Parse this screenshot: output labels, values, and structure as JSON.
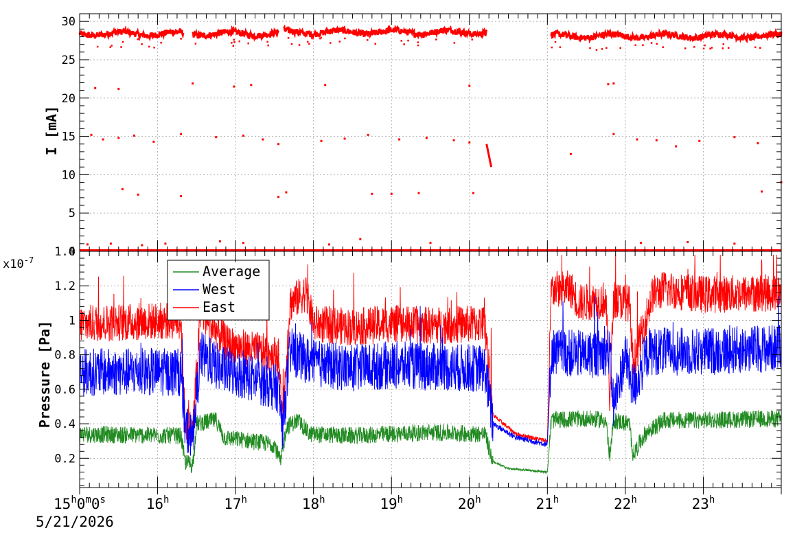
{
  "chart_data": [
    {
      "type": "scatter",
      "panel": "top",
      "ylabel": "I [mA]",
      "ylim": [
        0,
        31
      ],
      "yticks": [
        0,
        5,
        10,
        15,
        20,
        25,
        30
      ],
      "ytick_labels": [
        "0",
        "5",
        "10",
        "15",
        "20",
        "25",
        "30"
      ],
      "grid": true,
      "series": [
        {
          "color": "#ff0000",
          "description_of_shape": "beam current",
          "segments": [
            {
              "t_start": 15.0,
              "t_end": 16.33,
              "level": 28.4
            },
            {
              "t_start": 16.45,
              "t_end": 17.55,
              "level": 28.4
            },
            {
              "t_start": 17.62,
              "t_end": 20.22,
              "level": 28.6
            },
            {
              "t_start": 21.05,
              "t_end": 24.0,
              "level": 28.1
            }
          ],
          "outliers": [
            [
              15.2,
              21.3
            ],
            [
              15.5,
              21.2
            ],
            [
              16.45,
              21.9
            ],
            [
              16.98,
              21.5
            ],
            [
              17.2,
              21.7
            ],
            [
              18.15,
              21.7
            ],
            [
              20.0,
              21.6
            ],
            [
              21.78,
              21.8
            ],
            [
              21.85,
              21.9
            ],
            [
              15.15,
              15.2
            ],
            [
              15.3,
              14.6
            ],
            [
              15.5,
              14.8
            ],
            [
              15.7,
              15.1
            ],
            [
              15.95,
              14.3
            ],
            [
              16.3,
              15.3
            ],
            [
              16.75,
              14.9
            ],
            [
              17.1,
              15.1
            ],
            [
              17.35,
              14.6
            ],
            [
              17.55,
              14.0
            ],
            [
              18.1,
              14.4
            ],
            [
              18.4,
              14.7
            ],
            [
              18.7,
              15.2
            ],
            [
              19.1,
              14.6
            ],
            [
              19.45,
              14.8
            ],
            [
              19.8,
              14.5
            ],
            [
              20.0,
              14.2
            ],
            [
              21.85,
              15.3
            ],
            [
              22.15,
              14.6
            ],
            [
              22.4,
              14.5
            ],
            [
              22.65,
              13.7
            ],
            [
              22.95,
              14.4
            ],
            [
              23.4,
              14.9
            ],
            [
              23.7,
              14.1
            ],
            [
              21.3,
              12.7
            ],
            [
              15.55,
              8.1
            ],
            [
              15.75,
              7.4
            ],
            [
              16.3,
              7.2
            ],
            [
              17.55,
              7.1
            ],
            [
              17.65,
              7.7
            ],
            [
              18.75,
              7.5
            ],
            [
              19.0,
              7.5
            ],
            [
              19.35,
              7.6
            ],
            [
              20.05,
              7.6
            ],
            [
              23.75,
              7.8
            ],
            [
              24.0,
              9.0
            ],
            [
              15.1,
              0.9
            ],
            [
              15.4,
              1.0
            ],
            [
              15.8,
              0.8
            ],
            [
              16.1,
              1.0
            ],
            [
              16.8,
              1.3
            ],
            [
              17.1,
              1.1
            ],
            [
              18.2,
              0.9
            ],
            [
              18.6,
              1.6
            ],
            [
              19.5,
              1.1
            ],
            [
              22.2,
              1.1
            ],
            [
              22.8,
              1.2
            ],
            [
              23.4,
              1.0
            ]
          ],
          "ramp": {
            "t_start": 20.22,
            "t_end": 20.28,
            "from": 14.0,
            "to": 11.0
          }
        }
      ]
    },
    {
      "type": "line",
      "panel": "bottom",
      "ylabel": "Pressure [Pa]",
      "y_exponent_label": "x10",
      "y_exponent_value": "-7",
      "ylim": [
        0.03,
        1.4
      ],
      "yticks": [
        0.2,
        0.4,
        0.6,
        0.8,
        1.0,
        1.2,
        1.4
      ],
      "ytick_labels": [
        "0.2",
        "0.4",
        "0.6",
        "0.8",
        "1",
        "1.2",
        "1.4"
      ],
      "grid": true,
      "legend_position": "top-left",
      "series": [
        {
          "name": "Average",
          "color": "#228b22",
          "points": [
            [
              15.0,
              0.34
            ],
            [
              16.3,
              0.33
            ],
            [
              16.35,
              0.18
            ],
            [
              16.45,
              0.16
            ],
            [
              16.5,
              0.4
            ],
            [
              16.75,
              0.42
            ],
            [
              16.85,
              0.32
            ],
            [
              17.2,
              0.3
            ],
            [
              17.5,
              0.28
            ],
            [
              17.58,
              0.17
            ],
            [
              17.65,
              0.38
            ],
            [
              17.8,
              0.42
            ],
            [
              17.95,
              0.34
            ],
            [
              18.5,
              0.33
            ],
            [
              19.5,
              0.35
            ],
            [
              20.2,
              0.34
            ],
            [
              20.3,
              0.18
            ],
            [
              20.5,
              0.14
            ],
            [
              21.0,
              0.12
            ],
            [
              21.05,
              0.42
            ],
            [
              21.5,
              0.43
            ],
            [
              21.75,
              0.42
            ],
            [
              21.8,
              0.2
            ],
            [
              21.85,
              0.42
            ],
            [
              22.05,
              0.4
            ],
            [
              22.1,
              0.22
            ],
            [
              22.25,
              0.34
            ],
            [
              22.5,
              0.42
            ],
            [
              23.0,
              0.42
            ],
            [
              24.0,
              0.43
            ]
          ]
        },
        {
          "name": "West",
          "color": "#0000ff",
          "points": [
            [
              15.0,
              0.7
            ],
            [
              16.3,
              0.7
            ],
            [
              16.35,
              0.38
            ],
            [
              16.45,
              0.32
            ],
            [
              16.55,
              0.8
            ],
            [
              16.8,
              0.72
            ],
            [
              17.3,
              0.65
            ],
            [
              17.55,
              0.6
            ],
            [
              17.6,
              0.38
            ],
            [
              17.7,
              0.82
            ],
            [
              18.0,
              0.75
            ],
            [
              18.5,
              0.72
            ],
            [
              19.0,
              0.74
            ],
            [
              19.5,
              0.73
            ],
            [
              20.2,
              0.72
            ],
            [
              20.3,
              0.4
            ],
            [
              20.6,
              0.32
            ],
            [
              21.0,
              0.28
            ],
            [
              21.05,
              0.82
            ],
            [
              21.5,
              0.8
            ],
            [
              21.8,
              0.82
            ],
            [
              21.85,
              0.5
            ],
            [
              22.0,
              0.8
            ],
            [
              22.1,
              0.6
            ],
            [
              22.3,
              0.82
            ],
            [
              23.0,
              0.82
            ],
            [
              24.0,
              0.84
            ]
          ]
        },
        {
          "name": "East",
          "color": "#ff0000",
          "points": [
            [
              15.0,
              0.98
            ],
            [
              16.3,
              1.0
            ],
            [
              16.35,
              0.42
            ],
            [
              16.45,
              0.35
            ],
            [
              16.55,
              1.05
            ],
            [
              16.9,
              0.86
            ],
            [
              17.3,
              0.82
            ],
            [
              17.55,
              0.8
            ],
            [
              17.6,
              0.42
            ],
            [
              17.7,
              1.1
            ],
            [
              17.9,
              1.16
            ],
            [
              18.0,
              0.98
            ],
            [
              18.5,
              0.96
            ],
            [
              19.0,
              0.98
            ],
            [
              19.5,
              0.97
            ],
            [
              20.2,
              0.98
            ],
            [
              20.3,
              0.45
            ],
            [
              20.6,
              0.34
            ],
            [
              21.0,
              0.3
            ],
            [
              21.05,
              1.18
            ],
            [
              21.3,
              1.18
            ],
            [
              21.4,
              1.1
            ],
            [
              21.75,
              1.12
            ],
            [
              21.8,
              0.55
            ],
            [
              21.85,
              1.12
            ],
            [
              22.05,
              1.1
            ],
            [
              22.1,
              0.75
            ],
            [
              22.35,
              1.15
            ],
            [
              22.5,
              1.18
            ],
            [
              23.0,
              1.15
            ],
            [
              24.0,
              1.16
            ]
          ]
        }
      ]
    }
  ],
  "x_axis": {
    "type": "time",
    "range": [
      15.0,
      24.0
    ],
    "major_hours": [
      15,
      16,
      17,
      18,
      19,
      20,
      21,
      22,
      23
    ],
    "labels": [
      {
        "t": 15,
        "main": "15",
        "sup1": "h",
        "mid1": "0",
        "sup2": "m",
        "mid2": "0",
        "sup3": "s"
      },
      {
        "t": 16,
        "main": "16",
        "sup1": "h"
      },
      {
        "t": 17,
        "main": "17",
        "sup1": "h"
      },
      {
        "t": 18,
        "main": "18",
        "sup1": "h"
      },
      {
        "t": 19,
        "main": "19",
        "sup1": "h"
      },
      {
        "t": 20,
        "main": "20",
        "sup1": "h"
      },
      {
        "t": 21,
        "main": "21",
        "sup1": "h"
      },
      {
        "t": 22,
        "main": "22",
        "sup1": "h"
      },
      {
        "t": 23,
        "main": "23",
        "sup1": "h"
      }
    ],
    "date": "5/21/2026"
  },
  "legend": {
    "entries": [
      "Average",
      "West",
      "East"
    ]
  }
}
